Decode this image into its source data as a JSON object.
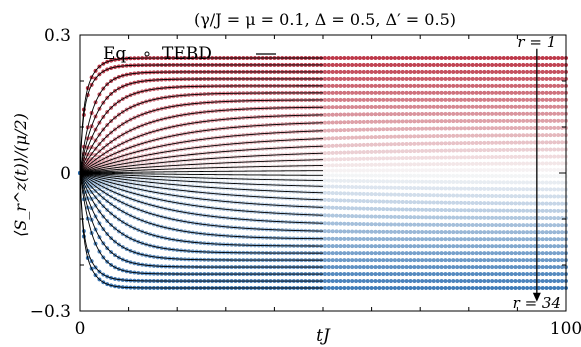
{
  "chart_data": {
    "type": "scatter",
    "title": "(γ/J = μ = 0.1, Δ = 0.5, Δ′ = 0.5)",
    "xlabel": "tJ",
    "ylabel": "⟨S_r^z(t)⟩/(μ/2)",
    "xlim": [
      0,
      100
    ],
    "ylim": [
      -0.3,
      0.3
    ],
    "x_ticks": [
      0,
      100
    ],
    "y_ticks": [
      -0.3,
      0,
      0.3
    ],
    "x_tick_labels": [
      "0",
      "100"
    ],
    "y_tick_labels": [
      "−0.3",
      "0",
      "0.3"
    ],
    "x_minor_ticks": [
      10,
      20,
      30,
      40,
      50,
      60,
      70,
      80,
      90
    ],
    "y_minor_ticks": [
      -0.2,
      -0.1,
      0.1,
      0.2
    ],
    "grid": false,
    "legend": {
      "placement": "top-left",
      "entries": [
        {
          "label": "Eq.",
          "marker": "circle"
        },
        {
          "label": "TEBD",
          "marker": "line"
        }
      ]
    },
    "annotations": [
      {
        "text": "r = 1",
        "x": 94,
        "y": 0.285
      },
      {
        "text": "r = 34",
        "x": 94,
        "y": -0.285
      }
    ],
    "arrow": {
      "x": 94,
      "y_from": 0.27,
      "y_to": -0.28
    },
    "sites": 34,
    "tebd_t_max": 50,
    "eq_t_max": 100,
    "site_1_plateau": 0.25,
    "site_34_plateau": -0.25,
    "colors": {
      "top": "#b2182b",
      "mid": "#f7f7f7",
      "bottom": "#2166ac",
      "line": "#000000"
    }
  }
}
